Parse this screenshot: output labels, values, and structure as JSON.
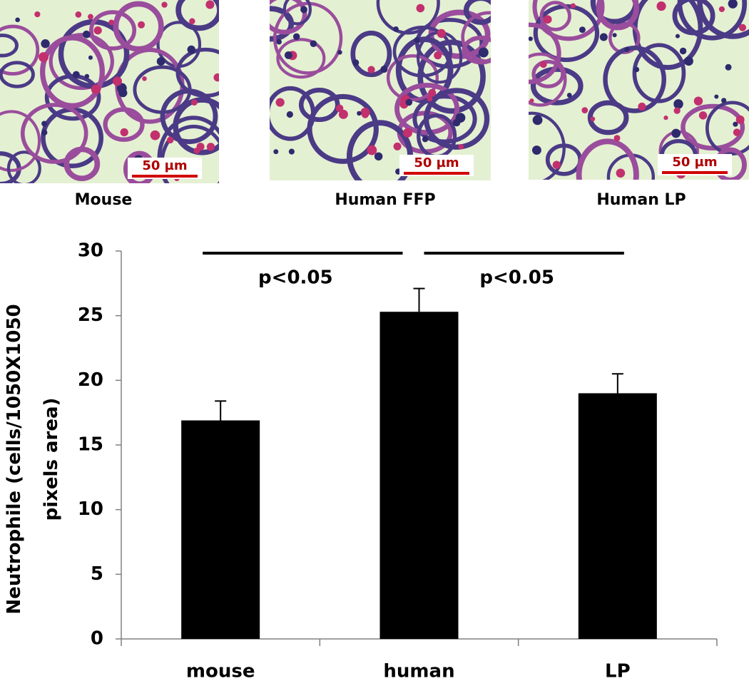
{
  "images": [
    {
      "label": "Mouse",
      "scale_bar": "50 µm"
    },
    {
      "label": "Human FFP",
      "scale_bar": "50 µm"
    },
    {
      "label": "Human LP",
      "scale_bar": "50 µm"
    }
  ],
  "chart_data": {
    "type": "bar",
    "ylabel": [
      "Neutrophile (cells/1050X1050",
      "pixels area)"
    ],
    "categories": [
      "mouse",
      "human",
      "LP"
    ],
    "values": [
      16.9,
      25.3,
      19.0
    ],
    "errors": [
      1.5,
      1.8,
      1.5
    ],
    "color": "#000000",
    "ylim": [
      0,
      30
    ],
    "yticks": [
      0,
      5,
      10,
      15,
      20,
      25,
      30
    ],
    "annotations": [
      {
        "text": "p<0.05",
        "from": 0,
        "to": 1
      },
      {
        "text": "p<0.05",
        "from": 1,
        "to": 2
      }
    ]
  }
}
